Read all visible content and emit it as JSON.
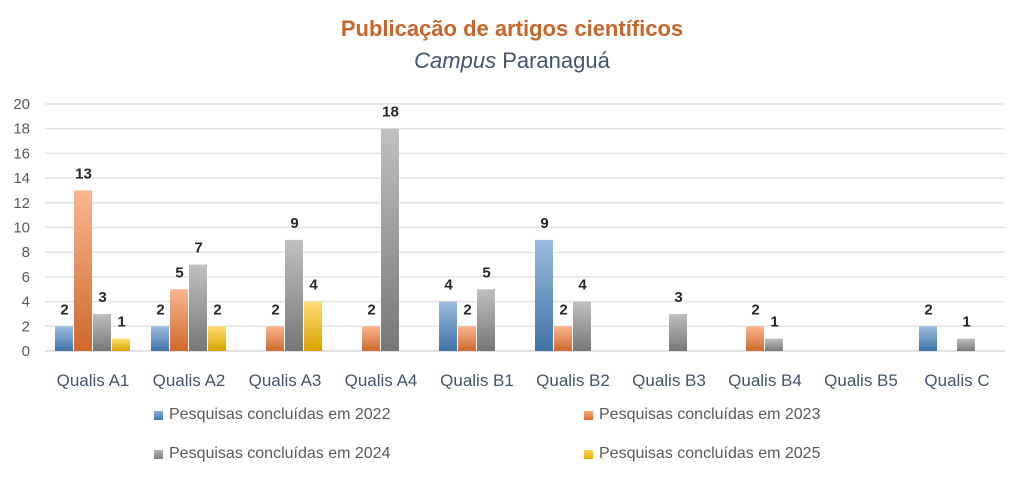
{
  "chart_data": {
    "type": "bar",
    "title": "Publicação de artigos científicos",
    "subtitle_italic": "Campus",
    "subtitle_rest": " Paranaguá",
    "xlabel": "",
    "ylabel": "",
    "ylim": [
      0,
      20
    ],
    "yticks": [
      0,
      2,
      4,
      6,
      8,
      10,
      12,
      14,
      16,
      18,
      20
    ],
    "grid": true,
    "legend_position": "bottom",
    "categories": [
      "Qualis A1",
      "Qualis A2",
      "Qualis A3",
      "Qualis A4",
      "Qualis B1",
      "Qualis B2",
      "Qualis B3",
      "Qualis B4",
      "Qualis B5",
      "Qualis C"
    ],
    "series": [
      {
        "name": "Pesquisas concluídas em 2022",
        "color": "#4a86c5",
        "values": [
          2,
          2,
          null,
          null,
          4,
          9,
          null,
          null,
          null,
          2
        ]
      },
      {
        "name": "Pesquisas concluídas em 2023",
        "color": "#f47a35",
        "values": [
          13,
          5,
          2,
          2,
          2,
          2,
          null,
          2,
          null,
          null
        ]
      },
      {
        "name": "Pesquisas concluídas em 2024",
        "color": "#8c8c8c",
        "values": [
          3,
          7,
          9,
          18,
          5,
          4,
          3,
          1,
          null,
          1
        ]
      },
      {
        "name": "Pesquisas concluídas em 2025",
        "color": "#ffc000",
        "values": [
          1,
          2,
          4,
          null,
          null,
          null,
          null,
          null,
          null,
          null
        ]
      }
    ]
  }
}
